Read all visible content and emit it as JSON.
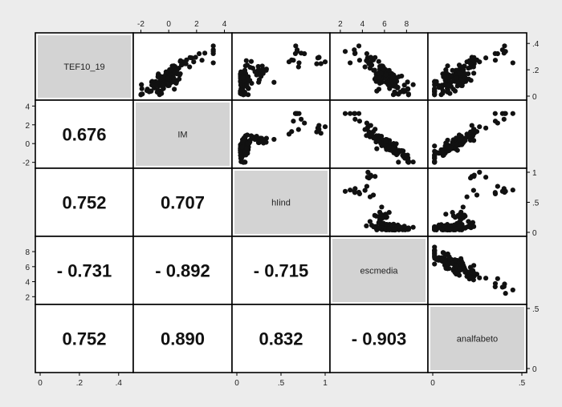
{
  "chart_data": {
    "type": "scatter",
    "subtype": "scatterplot-matrix",
    "variables": [
      "TEF10_19",
      "IM",
      "hIind",
      "escmedia",
      "analfabeto"
    ],
    "correlations": [
      {
        "row": 1,
        "col": 0,
        "label": "0.676",
        "value": 0.676
      },
      {
        "row": 2,
        "col": 0,
        "label": "0.752",
        "value": 0.752
      },
      {
        "row": 2,
        "col": 1,
        "label": "0.707",
        "value": 0.707
      },
      {
        "row": 3,
        "col": 0,
        "label": "- 0.731",
        "value": -0.731
      },
      {
        "row": 3,
        "col": 1,
        "label": "- 0.892",
        "value": -0.892
      },
      {
        "row": 3,
        "col": 2,
        "label": "- 0.715",
        "value": -0.715
      },
      {
        "row": 4,
        "col": 0,
        "label": "0.752",
        "value": 0.752
      },
      {
        "row": 4,
        "col": 1,
        "label": "0.890",
        "value": 0.89
      },
      {
        "row": 4,
        "col": 2,
        "label": "0.832",
        "value": 0.832
      },
      {
        "row": 4,
        "col": 3,
        "label": "- 0.903",
        "value": -0.903
      }
    ],
    "axes": [
      {
        "variable": "TEF10_19",
        "range": [
          0,
          0.45
        ],
        "ticks": [
          0,
          0.2,
          0.4
        ],
        "tick_labels": [
          "0",
          ".2",
          ".4"
        ],
        "tick_side": "bottom"
      },
      {
        "variable": "IM",
        "range": [
          -2.2,
          4.2
        ],
        "ticks": [
          -2,
          0,
          2,
          4
        ],
        "tick_labels": [
          "-2",
          "0",
          "2",
          "4"
        ],
        "tick_side": "top/left"
      },
      {
        "variable": "hIind",
        "range": [
          0,
          1
        ],
        "ticks": [
          0,
          0.5,
          1
        ],
        "tick_labels": [
          "0",
          ".5",
          "1"
        ],
        "tick_side": "bottom/right"
      },
      {
        "variable": "escmedia",
        "range": [
          1.5,
          9.5
        ],
        "ticks": [
          2,
          4,
          6,
          8
        ],
        "tick_labels": [
          "2",
          "4",
          "6",
          "8"
        ],
        "tick_side": "top/left"
      },
      {
        "variable": "analfabeto",
        "range": [
          0,
          0.5
        ],
        "ticks": [
          0,
          0.5
        ],
        "tick_labels": [
          "0",
          ".5"
        ],
        "tick_side": "bottom/right"
      }
    ],
    "grid": false,
    "legend": "none",
    "marker_color": "#111111",
    "diagonal_fill": "#d3d3d3",
    "cell_fill": "#ffffff"
  }
}
